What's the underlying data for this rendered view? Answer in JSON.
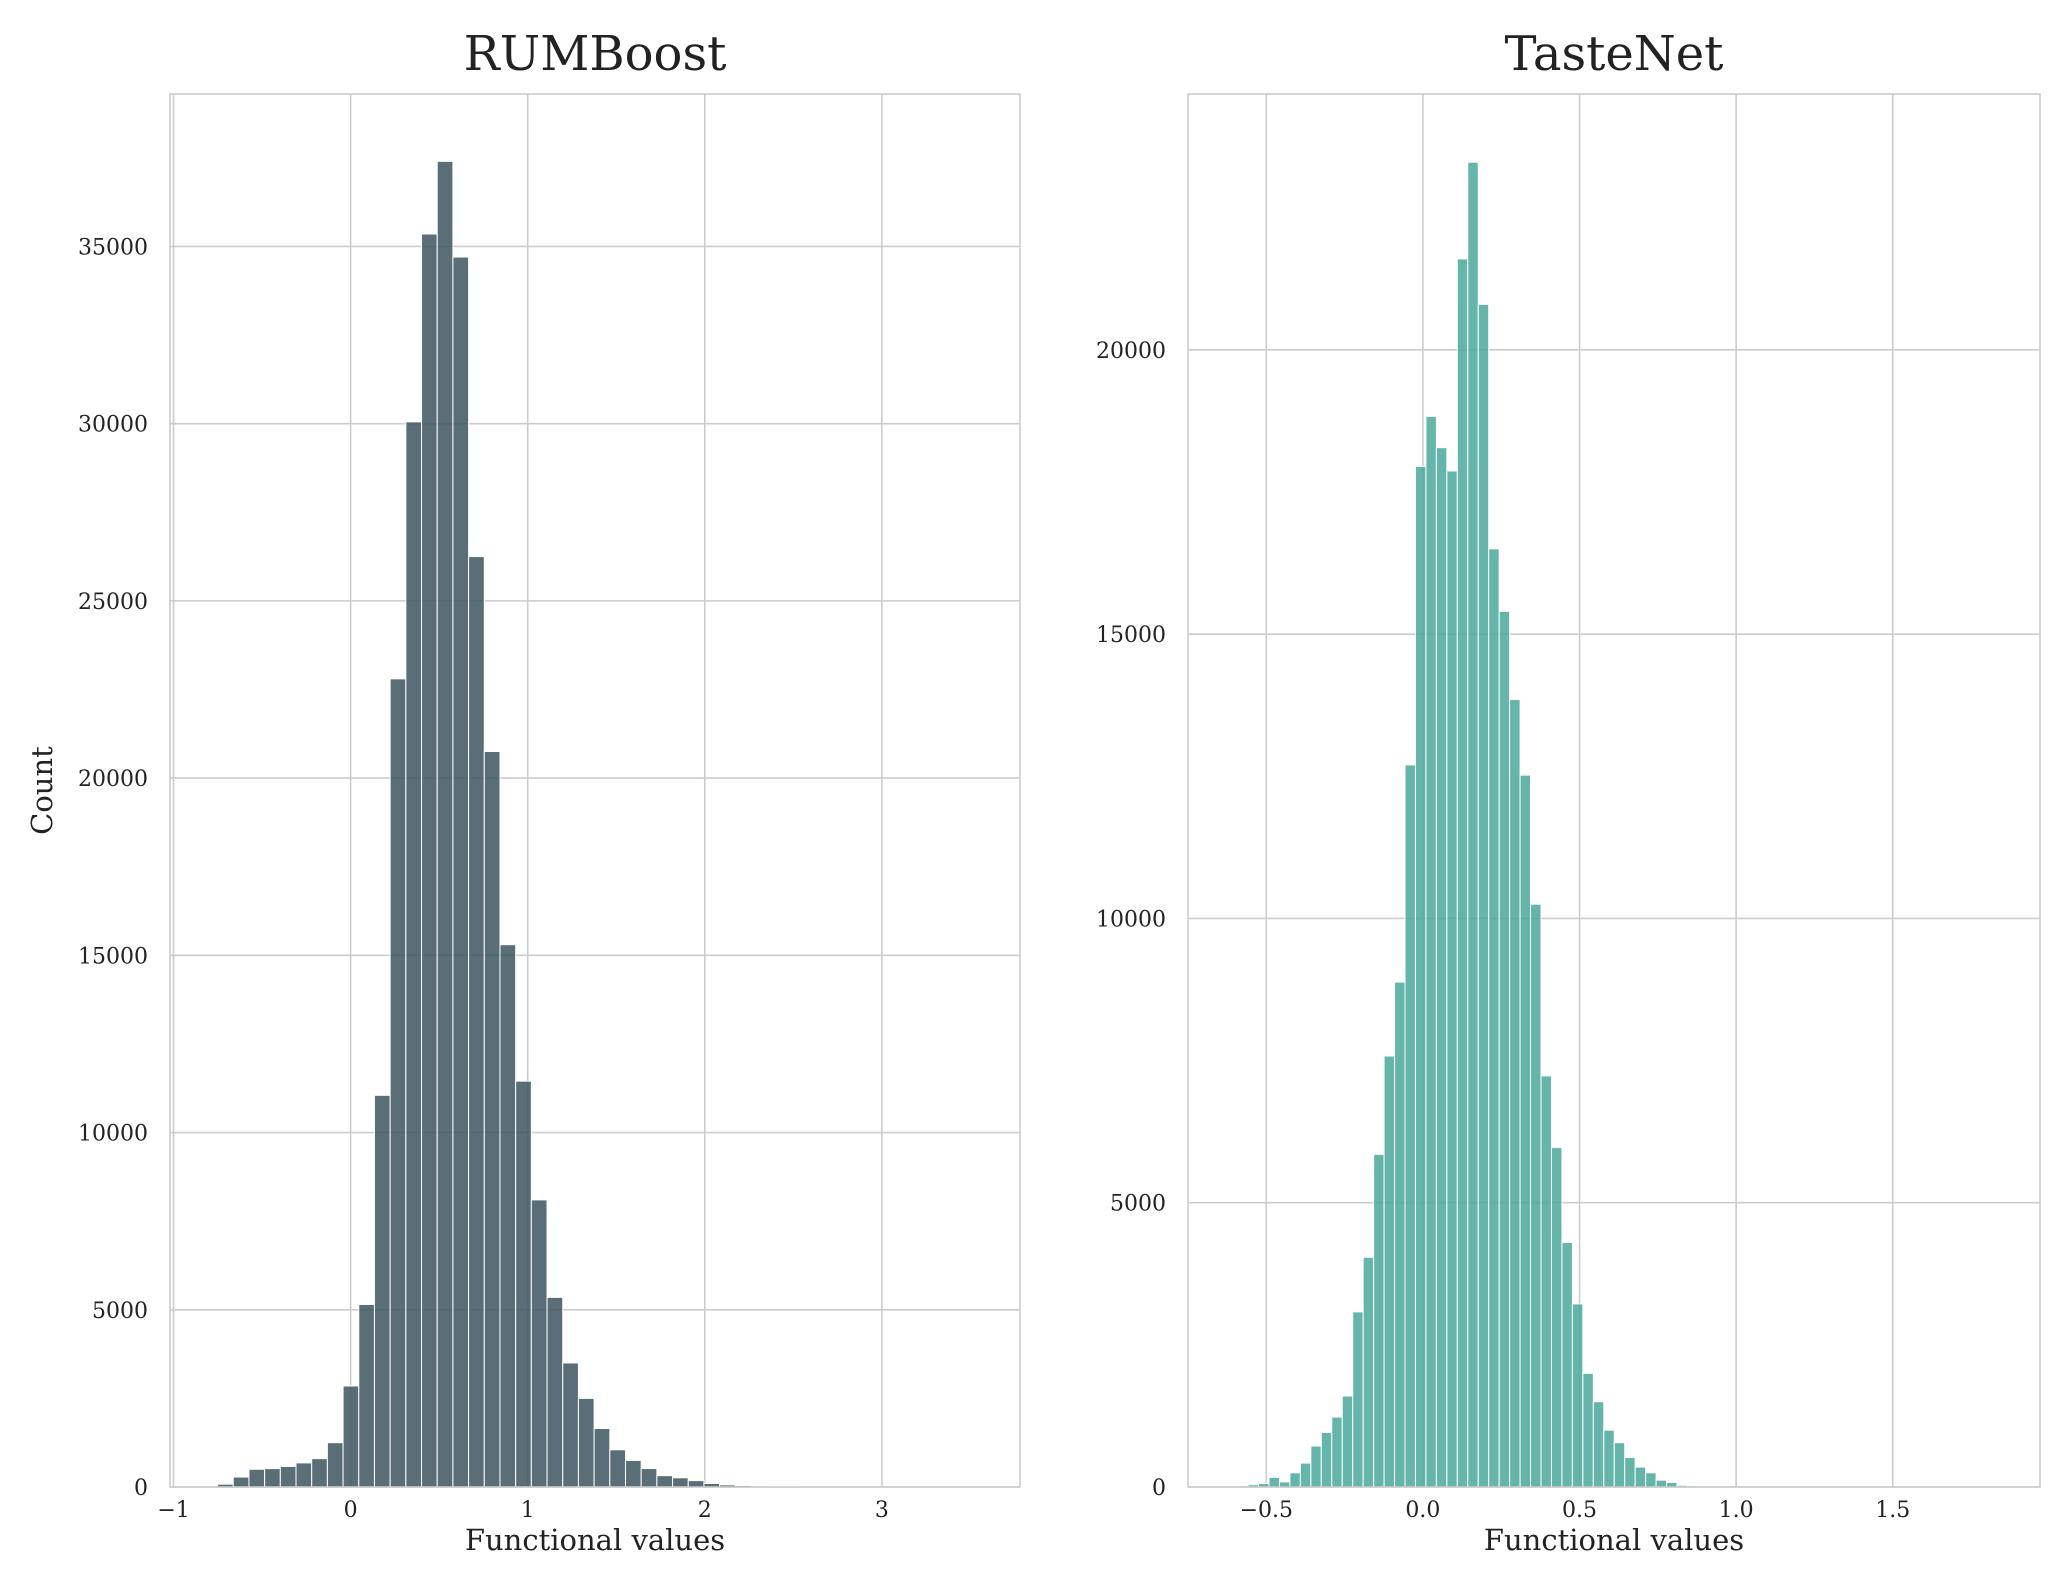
{
  "chart_data": [
    {
      "type": "bar",
      "title": "RUMBoost",
      "xlabel": "Functional values",
      "ylabel": "Count",
      "xlim": [
        -1.02,
        3.78
      ],
      "ylim": [
        0,
        39300
      ],
      "xticks": [
        -1,
        0,
        1,
        2,
        3
      ],
      "xtick_labels": [
        "−1",
        "0",
        "1",
        "2",
        "3"
      ],
      "yticks": [
        0,
        5000,
        10000,
        15000,
        20000,
        25000,
        30000,
        35000
      ],
      "ytick_labels": [
        "0",
        "5000",
        "10000",
        "15000",
        "20000",
        "25000",
        "30000",
        "35000"
      ],
      "grid": true,
      "color": "#3d5560",
      "bin_start": -0.84,
      "bin_width": 0.0886,
      "values": [
        30,
        80,
        280,
        500,
        520,
        580,
        680,
        800,
        1250,
        2850,
        5150,
        11050,
        22800,
        30050,
        35350,
        37400,
        34700,
        26250,
        20750,
        15300,
        11450,
        8100,
        5350,
        3500,
        2500,
        1650,
        1050,
        750,
        520,
        320,
        260,
        180,
        100,
        60,
        40,
        30,
        20,
        15,
        10,
        8,
        5,
        5,
        3,
        3,
        2,
        2,
        1,
        1,
        1,
        1
      ]
    },
    {
      "type": "bar",
      "title": "TasteNet",
      "xlabel": "Functional values",
      "ylabel": "",
      "xlim": [
        -0.75,
        1.97
      ],
      "ylim": [
        0,
        24500
      ],
      "xticks": [
        -0.5,
        0.0,
        0.5,
        1.0,
        1.5
      ],
      "xtick_labels": [
        "−0.5",
        "0.0",
        "0.5",
        "1.0",
        "1.5"
      ],
      "yticks": [
        0,
        5000,
        10000,
        15000,
        20000
      ],
      "ytick_labels": [
        "0",
        "5000",
        "10000",
        "15000",
        "20000"
      ],
      "grid": true,
      "color": "#4aa89c",
      "bin_start": -0.625,
      "bin_width": 0.0334,
      "values": [
        10,
        20,
        40,
        60,
        170,
        90,
        250,
        420,
        720,
        960,
        1230,
        1600,
        3080,
        4040,
        5850,
        7580,
        8880,
        12700,
        17950,
        18830,
        18280,
        17870,
        21600,
        23300,
        20800,
        16500,
        15400,
        13850,
        12520,
        10250,
        7230,
        5970,
        4300,
        3220,
        2000,
        1500,
        1000,
        780,
        520,
        350,
        250,
        120,
        80,
        30,
        20,
        10,
        5,
        3,
        1,
        1
      ]
    }
  ]
}
